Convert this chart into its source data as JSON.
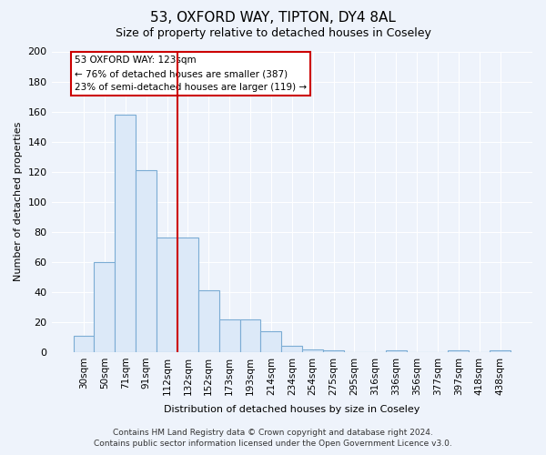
{
  "title1": "53, OXFORD WAY, TIPTON, DY4 8AL",
  "title2": "Size of property relative to detached houses in Coseley",
  "xlabel": "Distribution of detached houses by size in Coseley",
  "ylabel": "Number of detached properties",
  "categories": [
    "30sqm",
    "50sqm",
    "71sqm",
    "91sqm",
    "112sqm",
    "132sqm",
    "152sqm",
    "173sqm",
    "193sqm",
    "214sqm",
    "234sqm",
    "254sqm",
    "275sqm",
    "295sqm",
    "316sqm",
    "336sqm",
    "356sqm",
    "377sqm",
    "397sqm",
    "418sqm",
    "438sqm"
  ],
  "values": [
    11,
    60,
    158,
    121,
    76,
    76,
    41,
    22,
    22,
    14,
    4,
    2,
    1,
    0,
    0,
    1,
    0,
    0,
    1,
    0,
    1
  ],
  "bar_color": "#dce9f8",
  "bar_edge_color": "#7bacd4",
  "background_color": "#eef3fb",
  "grid_color": "#ffffff",
  "vline_position": 4.5,
  "vline_color": "#cc0000",
  "annotation_title": "53 OXFORD WAY: 123sqm",
  "annotation_line1": "← 76% of detached houses are smaller (387)",
  "annotation_line2": "23% of semi-detached houses are larger (119) →",
  "annotation_box_color": "white",
  "annotation_box_edge_color": "#cc0000",
  "footer1": "Contains HM Land Registry data © Crown copyright and database right 2024.",
  "footer2": "Contains public sector information licensed under the Open Government Licence v3.0.",
  "ylim": [
    0,
    200
  ],
  "yticks": [
    0,
    20,
    40,
    60,
    80,
    100,
    120,
    140,
    160,
    180,
    200
  ],
  "title1_fontsize": 11,
  "title2_fontsize": 9,
  "ylabel_fontsize": 8,
  "xlabel_fontsize": 8,
  "tick_fontsize": 8,
  "xtick_fontsize": 7.5,
  "footer_fontsize": 6.5
}
